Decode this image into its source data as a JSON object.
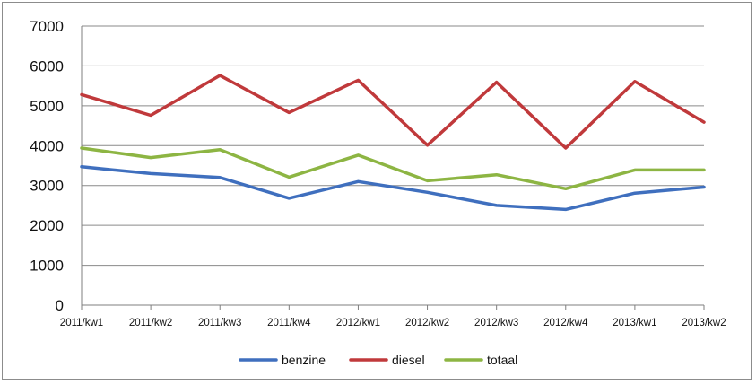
{
  "chart_data": {
    "type": "line",
    "categories": [
      "2011/kw1",
      "2011/kw2",
      "2011/kw3",
      "2011/kw4",
      "2012/kw1",
      "2012/kw2",
      "2012/kw3",
      "2012/kw4",
      "2013/kw1",
      "2013/kw2"
    ],
    "series": [
      {
        "name": "benzine",
        "color": "#3f6fbe",
        "values": [
          3470,
          3300,
          3200,
          2680,
          3100,
          2830,
          2500,
          2400,
          2810,
          2960
        ]
      },
      {
        "name": "diesel",
        "color": "#c0393b",
        "values": [
          5280,
          4760,
          5760,
          4830,
          5640,
          4010,
          5590,
          3940,
          5610,
          4590
        ]
      },
      {
        "name": "totaal",
        "color": "#8db543",
        "values": [
          3940,
          3700,
          3900,
          3210,
          3760,
          3120,
          3270,
          2920,
          3390,
          3390
        ]
      }
    ],
    "yticks": [
      0,
      1000,
      2000,
      3000,
      4000,
      5000,
      6000,
      7000
    ],
    "ylim": [
      0,
      7000
    ],
    "grid": true,
    "legend": "bottom",
    "title": "",
    "xlabel": "",
    "ylabel": ""
  }
}
